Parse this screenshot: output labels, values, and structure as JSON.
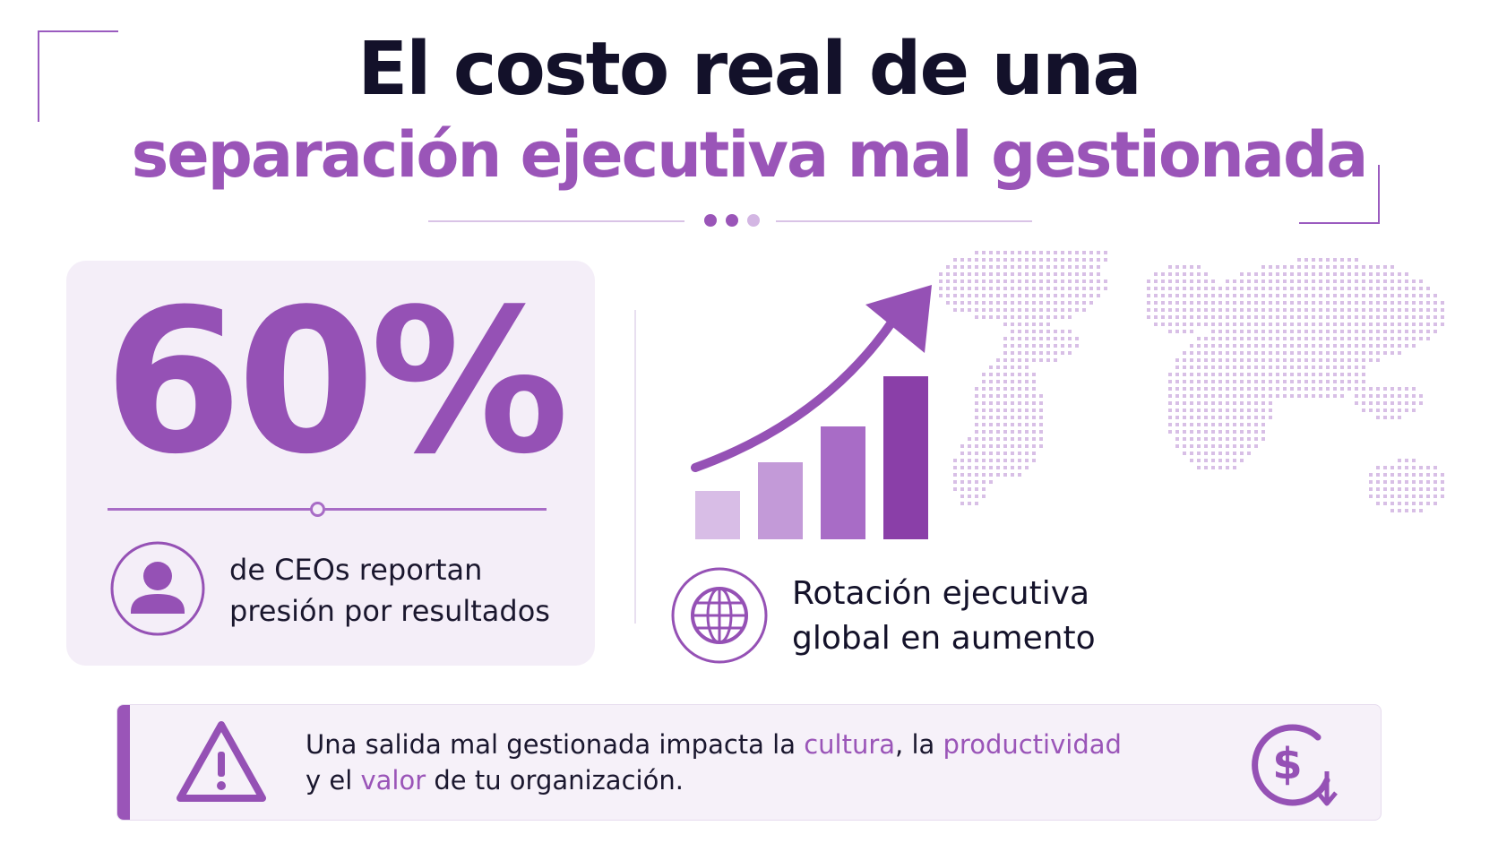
{
  "header": {
    "title_line1": "El costo real de una",
    "title_line2": "separación ejecutiva mal gestionada"
  },
  "stat_card": {
    "value": "60%",
    "line1": "de CEOs reportan",
    "line2": "presión por resultados",
    "icon": "user-icon"
  },
  "trend": {
    "line1": "Rotación ejecutiva",
    "line2": "global en aumento",
    "icon": "globe-icon",
    "chart_icon": "growth-bars-arrow-icon",
    "map_icon": "dotted-world-map"
  },
  "banner": {
    "part1": "Una salida mal gestionada impacta la ",
    "highlight1": "cultura",
    "part2": ", la ",
    "highlight2": "productividad",
    "part3": "y el ",
    "highlight3": "valor",
    "part4": " de tu organización.",
    "left_icon": "warning-icon",
    "right_icon": "dollar-decline-icon"
  },
  "colors": {
    "accent": "#9a55b8",
    "dark_text": "#14122a",
    "card_bg": "#f4eef8",
    "bar_light": "#d8bde6",
    "bar_mid1": "#c39ad8",
    "bar_mid2": "#a86cc6",
    "bar_dark": "#8a3fa8"
  }
}
